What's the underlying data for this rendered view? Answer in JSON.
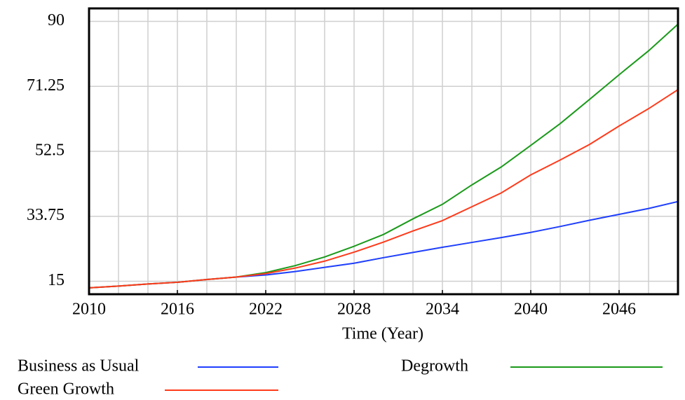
{
  "chart_data": {
    "type": "line",
    "x_label": "Time (Year)",
    "x": [
      2010,
      2012,
      2014,
      2016,
      2018,
      2020,
      2022,
      2024,
      2026,
      2028,
      2030,
      2032,
      2034,
      2036,
      2038,
      2040,
      2042,
      2044,
      2046,
      2048,
      2050
    ],
    "series": [
      {
        "name": "Business as Usual",
        "color": "#1f3fff",
        "values": [
          13.1,
          13.6,
          14.2,
          14.7,
          15.5,
          16.2,
          16.8,
          17.8,
          19,
          20.2,
          21.8,
          23.3,
          24.8,
          26.2,
          27.6,
          29.1,
          30.8,
          32.6,
          34.3,
          36,
          38
        ]
      },
      {
        "name": "Degrowth",
        "color": "#1a9a1a",
        "values": [
          13.1,
          13.6,
          14.2,
          14.7,
          15.5,
          16.2,
          17.5,
          19.5,
          22,
          25.1,
          28.5,
          33,
          37.2,
          42.8,
          48,
          54.2,
          60.5,
          67.5,
          74.6,
          81.5,
          89.2
        ]
      },
      {
        "name": "Green Growth",
        "color": "#ff3a1a",
        "values": [
          13.1,
          13.6,
          14.2,
          14.7,
          15.5,
          16.2,
          17.2,
          18.8,
          20.8,
          23.4,
          26.3,
          29.5,
          32.5,
          36.5,
          40.5,
          45.7,
          50,
          54.5,
          59.8,
          64.8,
          70.3
        ]
      }
    ],
    "xlim": [
      2010,
      2050
    ],
    "xticks": [
      2010,
      2016,
      2022,
      2028,
      2034,
      2040,
      2046
    ],
    "xgrid": [
      2010,
      2012,
      2014,
      2016,
      2018,
      2020,
      2022,
      2024,
      2026,
      2028,
      2030,
      2032,
      2034,
      2036,
      2038,
      2040,
      2042,
      2044,
      2046,
      2048,
      2050
    ],
    "ylim": [
      11.25,
      93.75
    ],
    "yticks": [
      15,
      33.75,
      52.5,
      71.25,
      90
    ],
    "grid": true
  }
}
